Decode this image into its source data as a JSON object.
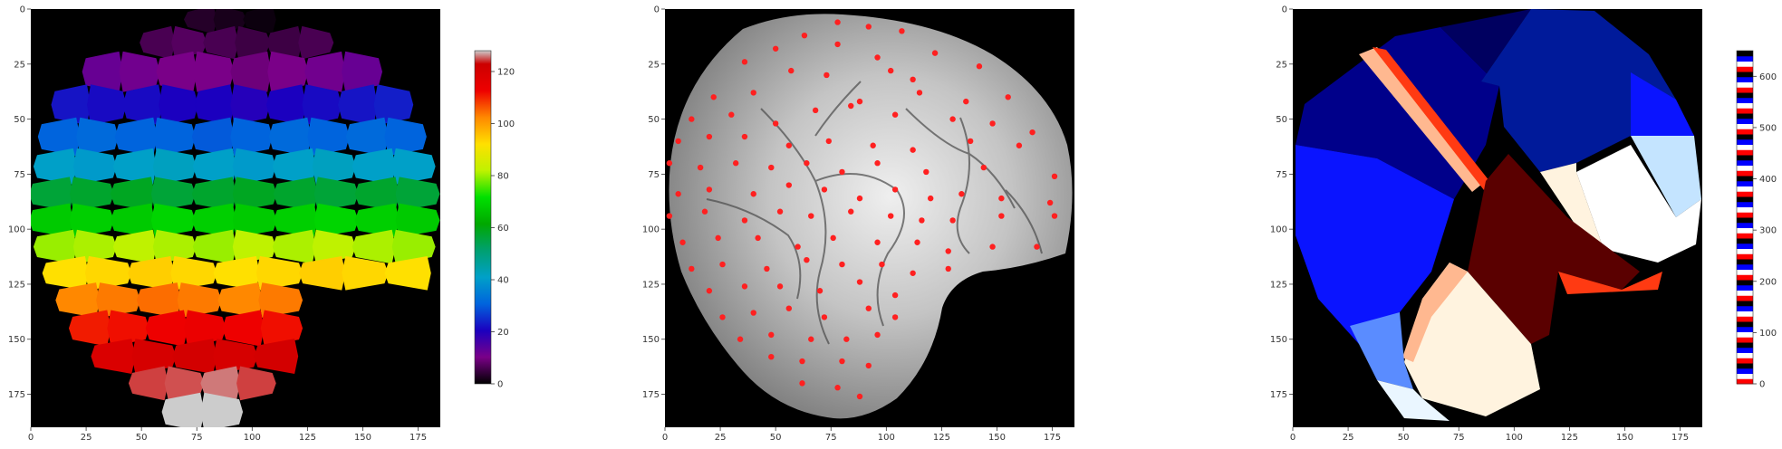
{
  "chart_data": [
    {
      "type": "heatmap",
      "description_colormap": "nipy_spectral",
      "xlim": [
        0,
        185
      ],
      "ylim": [
        190,
        0
      ],
      "x_ticks": [
        "0",
        "25",
        "50",
        "75",
        "100",
        "125",
        "150",
        "175"
      ],
      "y_ticks": [
        "0",
        "25",
        "50",
        "75",
        "100",
        "125",
        "150",
        "175"
      ],
      "colorbar": {
        "min": 0,
        "max": 128,
        "ticks": [
          "0",
          "20",
          "40",
          "60",
          "80",
          "100",
          "120"
        ]
      },
      "rows": [
        {
          "y": 5,
          "x_start": 70,
          "x_end": 110,
          "values": [
            3,
            2,
            1
          ]
        },
        {
          "y": 14,
          "x_start": 50,
          "x_end": 136,
          "values": [
            6,
            7,
            6,
            5,
            5,
            6
          ]
        },
        {
          "y": 28,
          "x_start": 24,
          "x_end": 158,
          "values": [
            12,
            11,
            10,
            10,
            9,
            10,
            11,
            12
          ]
        },
        {
          "y": 44,
          "x_start": 10,
          "x_end": 172,
          "values": [
            22,
            21,
            21,
            20,
            20,
            19,
            20,
            21,
            22,
            23
          ]
        },
        {
          "y": 58,
          "x_start": 4,
          "x_end": 178,
          "values": [
            30,
            31,
            30,
            30,
            29,
            30,
            31,
            30,
            31,
            30
          ]
        },
        {
          "y": 72,
          "x_start": 2,
          "x_end": 182,
          "values": [
            40,
            39,
            40,
            41,
            40,
            39,
            40,
            41,
            40,
            40
          ]
        },
        {
          "y": 84,
          "x_start": 0,
          "x_end": 184,
          "values": [
            55,
            56,
            57,
            55,
            56,
            57,
            56,
            55,
            56,
            55
          ]
        },
        {
          "y": 96,
          "x_start": 0,
          "x_end": 184,
          "values": [
            66,
            67,
            66,
            68,
            67,
            66,
            67,
            68,
            67,
            66
          ]
        },
        {
          "y": 108,
          "x_start": 2,
          "x_end": 182,
          "values": [
            78,
            79,
            80,
            79,
            78,
            80,
            79,
            80,
            79,
            78
          ]
        },
        {
          "y": 120,
          "x_start": 6,
          "x_end": 180,
          "values": [
            90,
            91,
            92,
            91,
            90,
            91,
            92,
            91,
            90
          ]
        },
        {
          "y": 132,
          "x_start": 12,
          "x_end": 122,
          "values": [
            100,
            101,
            102,
            101,
            100,
            101
          ]
        },
        {
          "y": 145,
          "x_start": 18,
          "x_end": 122,
          "values": [
            108,
            109,
            110,
            111,
            110,
            109
          ]
        },
        {
          "y": 158,
          "x_start": 28,
          "x_end": 120,
          "values": [
            116,
            117,
            118,
            117,
            118
          ]
        },
        {
          "y": 170,
          "x_start": 45,
          "x_end": 110,
          "values": [
            124,
            125,
            126,
            124
          ]
        },
        {
          "y": 182,
          "x_start": 60,
          "x_end": 95,
          "values": [
            128,
            128
          ]
        }
      ]
    },
    {
      "type": "scatter",
      "background": "grayscale brain image",
      "xlim": [
        0,
        185
      ],
      "ylim": [
        190,
        0
      ],
      "x_ticks": [
        "0",
        "25",
        "50",
        "75",
        "100",
        "125",
        "150",
        "175"
      ],
      "y_ticks": [
        "0",
        "25",
        "50",
        "75",
        "100",
        "125",
        "150",
        "175"
      ],
      "point_color": "#ff2020",
      "x": [
        78,
        92,
        63,
        107,
        50,
        78,
        96,
        122,
        36,
        57,
        73,
        102,
        112,
        142,
        22,
        40,
        88,
        115,
        136,
        155,
        12,
        30,
        50,
        68,
        84,
        104,
        130,
        148,
        166,
        6,
        20,
        36,
        56,
        74,
        94,
        112,
        138,
        160,
        2,
        16,
        32,
        48,
        64,
        80,
        96,
        118,
        144,
        176,
        6,
        20,
        40,
        56,
        72,
        88,
        104,
        120,
        134,
        152,
        174,
        2,
        18,
        36,
        52,
        66,
        84,
        102,
        116,
        130,
        152,
        176,
        8,
        24,
        42,
        60,
        76,
        96,
        114,
        128,
        148,
        168,
        12,
        26,
        46,
        64,
        80,
        98,
        112,
        128,
        20,
        36,
        52,
        70,
        88,
        104,
        26,
        40,
        56,
        72,
        92,
        104,
        34,
        48,
        66,
        82,
        96,
        48,
        62,
        80,
        92,
        62,
        78,
        88
      ],
      "y": [
        6,
        8,
        12,
        10,
        18,
        16,
        22,
        20,
        24,
        28,
        30,
        28,
        32,
        26,
        40,
        38,
        42,
        38,
        42,
        40,
        50,
        48,
        52,
        46,
        44,
        48,
        50,
        52,
        56,
        60,
        58,
        58,
        62,
        60,
        62,
        64,
        60,
        62,
        70,
        72,
        70,
        72,
        70,
        74,
        70,
        74,
        72,
        76,
        84,
        82,
        84,
        80,
        82,
        86,
        82,
        86,
        84,
        86,
        88,
        94,
        92,
        96,
        92,
        94,
        92,
        94,
        96,
        96,
        94,
        94,
        106,
        104,
        104,
        108,
        104,
        106,
        106,
        110,
        108,
        108,
        118,
        116,
        118,
        114,
        116,
        116,
        120,
        118,
        128,
        126,
        126,
        128,
        124,
        130,
        140,
        138,
        136,
        140,
        136,
        140,
        150,
        148,
        150,
        150,
        148,
        158,
        160,
        160,
        162,
        170,
        172,
        176
      ]
    },
    {
      "type": "heatmap",
      "description_colormap": "flag",
      "xlim": [
        0,
        185
      ],
      "ylim": [
        190,
        0
      ],
      "x_ticks": [
        "0",
        "25",
        "50",
        "75",
        "100",
        "125",
        "150",
        "175"
      ],
      "y_ticks": [
        "0",
        "25",
        "50",
        "75",
        "100",
        "125",
        "150",
        "175"
      ],
      "colorbar": {
        "min": 0,
        "max": 650,
        "ticks": [
          "0",
          "100",
          "200",
          "300",
          "400",
          "500",
          "600"
        ]
      },
      "regions": [
        {
          "label": "navy-left",
          "color": "#00008a"
        },
        {
          "label": "blue-left",
          "color": "#0a14ff"
        },
        {
          "label": "blue-top",
          "color": "#001a9a"
        },
        {
          "label": "navy-top",
          "color": "#000060"
        },
        {
          "label": "red-stripe",
          "color": "#ff3a12"
        },
        {
          "label": "maroon-stripe",
          "color": "#5a0000"
        },
        {
          "label": "orange-stripe",
          "color": "#ffb890"
        },
        {
          "label": "cream",
          "color": "#fff3df"
        },
        {
          "label": "white",
          "color": "#ffffff"
        },
        {
          "label": "light-blue",
          "color": "#c4e4ff"
        },
        {
          "label": "mid-blue",
          "color": "#5a8cff"
        }
      ]
    }
  ]
}
